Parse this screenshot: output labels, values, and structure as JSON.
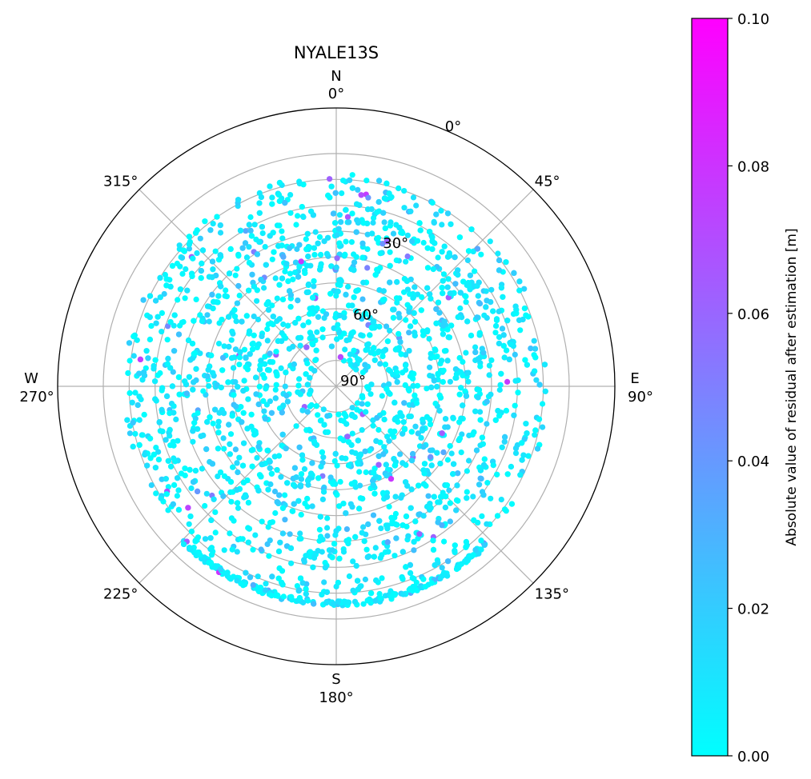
{
  "chart_data": {
    "type": "scatter",
    "title": "NYALE13S",
    "projection": "polar",
    "azimuth_ticks": [
      {
        "deg": 0,
        "label": "0°",
        "compass": "N"
      },
      {
        "deg": 45,
        "label": "45°"
      },
      {
        "deg": 90,
        "label": "90°",
        "compass": "E"
      },
      {
        "deg": 135,
        "label": "135°"
      },
      {
        "deg": 180,
        "label": "180°",
        "compass": "S"
      },
      {
        "deg": 225,
        "label": "225°"
      },
      {
        "deg": 270,
        "label": "270°",
        "compass": "W"
      },
      {
        "deg": 315,
        "label": "315°"
      }
    ],
    "elevation_ticks": [
      {
        "deg": 0,
        "label": "0°"
      },
      {
        "deg": 30,
        "label": "30°"
      },
      {
        "deg": 60,
        "label": "60°"
      },
      {
        "deg": 90,
        "label": "90°"
      }
    ],
    "elevation_range": [
      0,
      90
    ],
    "elevation_gridlines": [
      10,
      20,
      30,
      40,
      50,
      60,
      70,
      80
    ],
    "grid": true,
    "colorbar": {
      "label": "Absolute value of residual after estimation [m]",
      "range": [
        0,
        0.1
      ],
      "ticks": [
        "0.00",
        "0.02",
        "0.04",
        "0.06",
        "0.08",
        "0.10"
      ],
      "colormap": "cool",
      "color_min": "#00ffff",
      "color_max": "#ff00ff"
    },
    "observed_elevation_min": 5,
    "typical_residual": 0.015,
    "max_residual_observed": 0.08,
    "point_color_dominant": "#1ef0ff"
  }
}
